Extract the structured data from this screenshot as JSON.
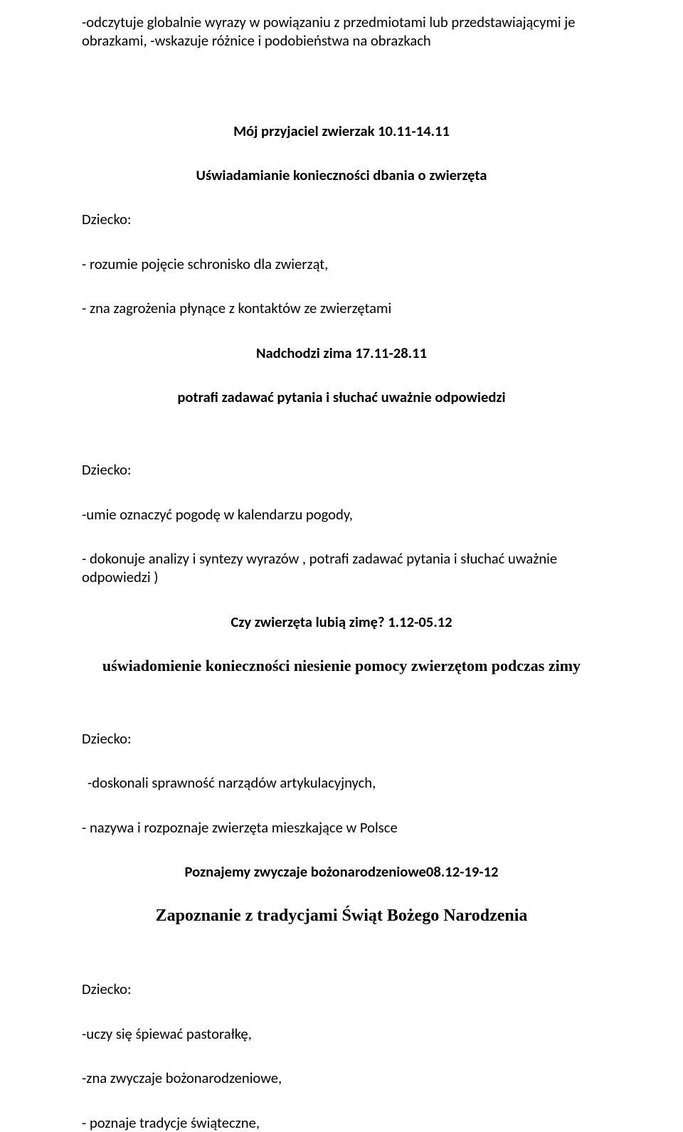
{
  "doc": {
    "intro_lines": "-odczytuje globalnie wyrazy w powiązaniu z przedmiotami lub przedstawiającymi je obrazkami, -wskazuje różnice i podobieństwa na obrazkach",
    "section1": {
      "title": "Mój przyjaciel zwierzak 10.11-14.11",
      "subtitle": "Uświadamianie konieczności dbania o zwierzęta",
      "child_label": "Dziecko:",
      "items": {
        "a": "- rozumie pojęcie schronisko dla zwierząt,",
        "b": "- zna zagrożenia płynące z kontaktów ze zwierzętami"
      }
    },
    "section2": {
      "title": "Nadchodzi zima 17.11-28.11",
      "subtitle": "potrafi zadawać pytania i słuchać uważnie odpowiedzi",
      "child_label": "Dziecko:",
      "items": {
        "a": "-umie oznaczyć pogodę w kalendarzu pogody,",
        "b": "- dokonuje analizy i syntezy wyrazów , potrafi zadawać pytania i słuchać uważnie odpowiedzi )"
      }
    },
    "section3": {
      "title": "Czy zwierzęta lubią zimę? 1.12-05.12",
      "subtitle": "uświadomienie konieczności niesienie pomocy zwierzętom podczas zimy",
      "child_label": "Dziecko:",
      "items": {
        "a": "-doskonali sprawność narządów artykulacyjnych,",
        "b": "- nazywa i rozpoznaje zwierzęta mieszkające w Polsce"
      }
    },
    "section4": {
      "title": "Poznajemy zwyczaje bożonarodzeniowe08.12-19-12",
      "subtitle": "Zapoznanie z tradycjami Świąt Bożego Narodzenia",
      "child_label": "Dziecko:",
      "items": {
        "a": "-uczy się śpiewać pastorałkę,",
        "b": "-zna zwyczaje bożonarodzeniowe,",
        "c": "- poznaje tradycje świąteczne,"
      }
    }
  }
}
